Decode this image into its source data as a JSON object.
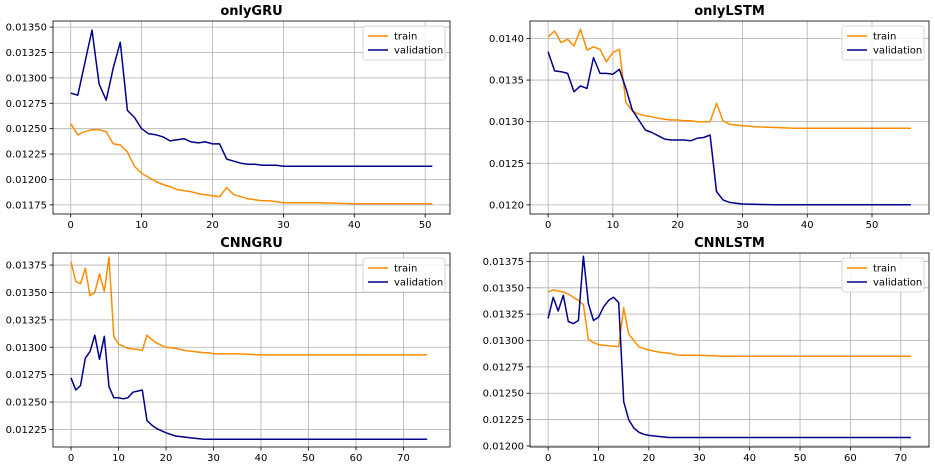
{
  "colors": {
    "train": "#ff8c00",
    "validation": "#00008b",
    "grid": "#b0b0b0",
    "axes": "#000000"
  },
  "chart_data": [
    {
      "type": "line",
      "title": "onlyGRU",
      "xlim": [
        -2.5,
        53.5
      ],
      "ylim": [
        0.01166,
        0.01356
      ],
      "xticks": [
        0,
        10,
        20,
        30,
        40,
        50
      ],
      "yticks": [
        0.01175,
        0.012,
        0.01225,
        0.0125,
        0.01275,
        0.013,
        0.01325,
        0.0135
      ],
      "ytick_labels": [
        "0.01175",
        "0.01200",
        "0.01225",
        "0.01250",
        "0.01275",
        "0.01300",
        "0.01325",
        "0.01350"
      ],
      "grid": true,
      "legend": "top-right",
      "series": [
        {
          "name": "train",
          "color": "#ff8c00",
          "x": [
            0,
            1,
            2,
            3,
            4,
            5,
            6,
            7,
            8,
            9,
            10,
            11,
            12,
            13,
            14,
            15,
            16,
            17,
            18,
            19,
            20,
            21,
            22,
            23,
            24,
            25,
            26,
            27,
            28,
            29,
            30,
            32,
            35,
            40,
            45,
            51
          ],
          "y": [
            0.01255,
            0.01244,
            0.01247,
            0.01249,
            0.01249,
            0.01247,
            0.01235,
            0.01234,
            0.01227,
            0.01213,
            0.01206,
            0.01202,
            0.01198,
            0.01195,
            0.01193,
            0.0119,
            0.01189,
            0.01188,
            0.01186,
            0.01185,
            0.01184,
            0.01183,
            0.01192,
            0.01185,
            0.01183,
            0.01181,
            0.0118,
            0.01179,
            0.01179,
            0.01178,
            0.01177,
            0.01177,
            0.01177,
            0.01176,
            0.01176,
            0.01176
          ]
        },
        {
          "name": "validation",
          "color": "#00008b",
          "x": [
            0,
            1,
            2,
            3,
            4,
            5,
            6,
            7,
            8,
            9,
            10,
            11,
            12,
            13,
            14,
            15,
            16,
            17,
            18,
            19,
            20,
            21,
            22,
            23,
            24,
            25,
            26,
            27,
            28,
            29,
            30,
            35,
            40,
            45,
            51
          ],
          "y": [
            0.01285,
            0.01283,
            0.01315,
            0.01347,
            0.01294,
            0.01278,
            0.0131,
            0.01335,
            0.01268,
            0.01261,
            0.0125,
            0.01245,
            0.01244,
            0.01242,
            0.01238,
            0.01239,
            0.0124,
            0.01237,
            0.01236,
            0.01237,
            0.01235,
            0.01235,
            0.0122,
            0.01218,
            0.01216,
            0.01215,
            0.01215,
            0.01214,
            0.01214,
            0.01214,
            0.01213,
            0.01213,
            0.01213,
            0.01213,
            0.01213
          ]
        }
      ]
    },
    {
      "type": "line",
      "title": "onlyLSTM",
      "xlim": [
        -2.8,
        58.8
      ],
      "ylim": [
        0.01189,
        0.01421
      ],
      "xticks": [
        0,
        10,
        20,
        30,
        40,
        50
      ],
      "yticks": [
        0.012,
        0.0125,
        0.013,
        0.0135,
        0.014
      ],
      "ytick_labels": [
        "0.0120",
        "0.0125",
        "0.0130",
        "0.0135",
        "0.0140"
      ],
      "grid": true,
      "legend": "top-right",
      "series": [
        {
          "name": "train",
          "color": "#ff8c00",
          "x": [
            0,
            1,
            2,
            3,
            4,
            5,
            6,
            7,
            8,
            9,
            10,
            11,
            12,
            13,
            14,
            15,
            16,
            17,
            18,
            19,
            20,
            21,
            22,
            23,
            24,
            25,
            26,
            27,
            28,
            29,
            30,
            32,
            35,
            38,
            40,
            45,
            50,
            56
          ],
          "y": [
            0.01402,
            0.01409,
            0.01395,
            0.01399,
            0.01391,
            0.01411,
            0.01386,
            0.0139,
            0.01387,
            0.01372,
            0.01383,
            0.01387,
            0.01323,
            0.01313,
            0.01309,
            0.01307,
            0.01306,
            0.01304,
            0.01303,
            0.01302,
            0.01302,
            0.01301,
            0.01301,
            0.013,
            0.013,
            0.013,
            0.01322,
            0.01301,
            0.01297,
            0.01296,
            0.01295,
            0.01294,
            0.01293,
            0.01292,
            0.01292,
            0.01292,
            0.01292,
            0.01292
          ]
        },
        {
          "name": "validation",
          "color": "#00008b",
          "x": [
            0,
            1,
            2,
            3,
            4,
            5,
            6,
            7,
            8,
            9,
            10,
            11,
            12,
            13,
            14,
            15,
            16,
            17,
            18,
            19,
            20,
            21,
            22,
            23,
            24,
            25,
            26,
            27,
            28,
            29,
            30,
            35,
            40,
            45,
            50,
            56
          ],
          "y": [
            0.01384,
            0.01361,
            0.0136,
            0.01358,
            0.01336,
            0.01343,
            0.0134,
            0.01377,
            0.01358,
            0.01358,
            0.01357,
            0.01363,
            0.0134,
            0.01314,
            0.01302,
            0.0129,
            0.01287,
            0.01283,
            0.01279,
            0.01278,
            0.01278,
            0.01278,
            0.01277,
            0.0128,
            0.01281,
            0.01284,
            0.01216,
            0.01206,
            0.01203,
            0.01202,
            0.01201,
            0.012,
            0.012,
            0.012,
            0.012,
            0.012
          ]
        }
      ]
    },
    {
      "type": "line",
      "title": "CNNGRU",
      "xlim": [
        -3.8,
        79.8
      ],
      "ylim": [
        0.01209,
        0.01386
      ],
      "xticks": [
        0,
        10,
        20,
        30,
        40,
        50,
        60,
        70
      ],
      "yticks": [
        0.01225,
        0.0125,
        0.01275,
        0.013,
        0.01325,
        0.0135,
        0.01375
      ],
      "ytick_labels": [
        "0.01225",
        "0.01250",
        "0.01275",
        "0.01300",
        "0.01325",
        "0.01350",
        "0.01375"
      ],
      "grid": true,
      "legend": "top-right",
      "series": [
        {
          "name": "train",
          "color": "#ff8c00",
          "x": [
            0,
            1,
            2,
            3,
            4,
            5,
            6,
            7,
            8,
            9,
            10,
            12,
            14,
            15,
            16,
            17,
            18,
            20,
            22,
            24,
            26,
            28,
            29,
            30,
            35,
            40,
            50,
            60,
            70,
            75
          ],
          "y": [
            0.01378,
            0.0136,
            0.01358,
            0.01372,
            0.01347,
            0.0135,
            0.01367,
            0.01351,
            0.01382,
            0.0131,
            0.01303,
            0.01299,
            0.01298,
            0.01297,
            0.01311,
            0.01307,
            0.01304,
            0.013,
            0.01299,
            0.01297,
            0.01296,
            0.01295,
            0.01295,
            0.01294,
            0.01294,
            0.01293,
            0.01293,
            0.01293,
            0.01293,
            0.01293
          ]
        },
        {
          "name": "validation",
          "color": "#00008b",
          "x": [
            0,
            1,
            2,
            3,
            4,
            5,
            6,
            7,
            8,
            9,
            10,
            11,
            12,
            13,
            14,
            15,
            16,
            17,
            18,
            20,
            22,
            24,
            26,
            28,
            30,
            35,
            40,
            50,
            60,
            70,
            75
          ],
          "y": [
            0.01272,
            0.01261,
            0.01265,
            0.0129,
            0.01296,
            0.01311,
            0.01289,
            0.0131,
            0.01264,
            0.01254,
            0.01254,
            0.01253,
            0.01254,
            0.01259,
            0.0126,
            0.01261,
            0.01233,
            0.01229,
            0.01226,
            0.01222,
            0.01219,
            0.01218,
            0.01217,
            0.01216,
            0.01216,
            0.01216,
            0.01216,
            0.01216,
            0.01216,
            0.01216,
            0.01216
          ]
        }
      ]
    },
    {
      "type": "line",
      "title": "CNNLSTM",
      "xlim": [
        -3.6,
        75.6
      ],
      "ylim": [
        0.01199,
        0.01383
      ],
      "xticks": [
        0,
        10,
        20,
        30,
        40,
        50,
        60,
        70
      ],
      "yticks": [
        0.012,
        0.01225,
        0.0125,
        0.01275,
        0.013,
        0.01325,
        0.0135,
        0.01375
      ],
      "ytick_labels": [
        "0.01200",
        "0.01225",
        "0.01250",
        "0.01275",
        "0.01300",
        "0.01325",
        "0.01350",
        "0.01375"
      ],
      "grid": true,
      "legend": "top-right",
      "series": [
        {
          "name": "train",
          "color": "#ff8c00",
          "x": [
            0,
            1,
            2,
            3,
            4,
            5,
            6,
            7,
            8,
            9,
            10,
            12,
            14,
            15,
            16,
            17,
            18,
            20,
            22,
            24,
            26,
            28,
            30,
            35,
            40,
            50,
            60,
            70,
            72
          ],
          "y": [
            0.01346,
            0.01348,
            0.01347,
            0.01346,
            0.01344,
            0.01341,
            0.01338,
            0.01334,
            0.01301,
            0.01298,
            0.01296,
            0.01295,
            0.01294,
            0.01331,
            0.01306,
            0.013,
            0.01294,
            0.01291,
            0.01289,
            0.01288,
            0.01286,
            0.01286,
            0.01286,
            0.01285,
            0.01285,
            0.01285,
            0.01285,
            0.01285,
            0.01285
          ]
        },
        {
          "name": "validation",
          "color": "#00008b",
          "x": [
            0,
            1,
            2,
            3,
            4,
            5,
            6,
            7,
            8,
            9,
            10,
            11,
            12,
            13,
            14,
            15,
            16,
            17,
            18,
            19,
            20,
            22,
            24,
            26,
            28,
            30,
            35,
            40,
            50,
            60,
            70,
            72
          ],
          "y": [
            0.01321,
            0.01341,
            0.01328,
            0.01343,
            0.01318,
            0.01316,
            0.01319,
            0.0138,
            0.01335,
            0.01319,
            0.01322,
            0.01332,
            0.01338,
            0.01341,
            0.01336,
            0.01242,
            0.01225,
            0.01217,
            0.01213,
            0.01211,
            0.0121,
            0.01209,
            0.01208,
            0.01208,
            0.01208,
            0.01208,
            0.01208,
            0.01208,
            0.01208,
            0.01208,
            0.01208,
            0.01208
          ]
        }
      ]
    }
  ]
}
